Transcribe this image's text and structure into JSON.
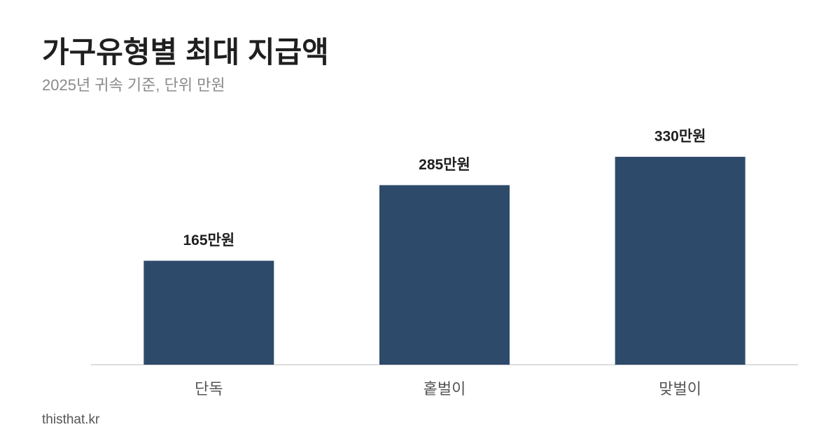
{
  "chart_data": {
    "type": "bar",
    "title": "가구유형별 최대 지급액",
    "subtitle": "2025년 귀속 기준, 단위 만원",
    "categories": [
      "단독",
      "홑벌이",
      "맞벌이"
    ],
    "values": [
      165,
      285,
      330
    ],
    "value_labels": [
      "165만원",
      "285만원",
      "330만원"
    ],
    "color": "#2e4a6b",
    "grid": false,
    "footer": "thisthat.kr"
  }
}
